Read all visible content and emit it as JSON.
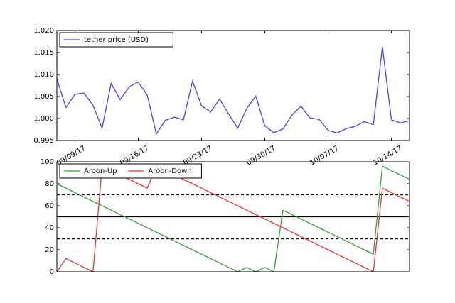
{
  "chart_data": [
    {
      "type": "line",
      "x": [
        "2017-09-07",
        "2017-09-08",
        "2017-09-09",
        "2017-09-10",
        "2017-09-11",
        "2017-09-12",
        "2017-09-13",
        "2017-09-14",
        "2017-09-15",
        "2017-09-16",
        "2017-09-17",
        "2017-09-18",
        "2017-09-19",
        "2017-09-20",
        "2017-09-21",
        "2017-09-22",
        "2017-09-23",
        "2017-09-24",
        "2017-09-25",
        "2017-09-26",
        "2017-09-27",
        "2017-09-28",
        "2017-09-29",
        "2017-09-30",
        "2017-10-01",
        "2017-10-02",
        "2017-10-03",
        "2017-10-04",
        "2017-10-05",
        "2017-10-06",
        "2017-10-07",
        "2017-10-08",
        "2017-10-09",
        "2017-10-10",
        "2017-10-11",
        "2017-10-12",
        "2017-10-13",
        "2017-10-14",
        "2017-10-15",
        "2017-10-16"
      ],
      "series": [
        {
          "name": "tether price (USD)",
          "color": "#4040ff",
          "values": [
            1.009,
            1.0025,
            1.0055,
            1.0058,
            1.003,
            0.9978,
            1.008,
            1.0043,
            1.0072,
            1.0083,
            1.0053,
            0.9965,
            0.9996,
            1.0003,
            0.9997,
            1.0085,
            1.0029,
            1.0015,
            1.0044,
            1.001,
            0.9978,
            1.0023,
            1.0051,
            0.9983,
            0.9968,
            0.9976,
            1.0008,
            1.0028,
            1.0001,
            0.9998,
            0.9973,
            0.9967,
            0.9977,
            0.9982,
            0.9993,
            0.9986,
            1.0163,
            0.9997,
            0.999,
            0.9995
          ]
        }
      ],
      "xlim": [
        "2017-09-07",
        "2017-10-16"
      ],
      "xticks": [
        {
          "value": "2017-09-09",
          "label": "09/09/17"
        },
        {
          "value": "2017-09-16",
          "label": "09/16/17"
        },
        {
          "value": "2017-09-23",
          "label": "09/23/17"
        },
        {
          "value": "2017-09-30",
          "label": "09/30/17"
        },
        {
          "value": "2017-10-07",
          "label": "10/07/17"
        },
        {
          "value": "2017-10-14",
          "label": "10/14/17"
        }
      ],
      "ylim": [
        0.995,
        1.02
      ],
      "yticks": [
        {
          "value": 0.995,
          "label": "0.995"
        },
        {
          "value": 1.0,
          "label": "1.000"
        },
        {
          "value": 1.005,
          "label": "1.005"
        },
        {
          "value": 1.01,
          "label": "1.010"
        },
        {
          "value": 1.015,
          "label": "1.015"
        },
        {
          "value": 1.02,
          "label": "1.020"
        }
      ],
      "legend": "upper left"
    },
    {
      "type": "line",
      "x": [
        "2017-09-07",
        "2017-09-08",
        "2017-09-09",
        "2017-09-10",
        "2017-09-11",
        "2017-09-12",
        "2017-09-13",
        "2017-09-14",
        "2017-09-15",
        "2017-09-16",
        "2017-09-17",
        "2017-09-18",
        "2017-09-19",
        "2017-09-20",
        "2017-09-21",
        "2017-09-22",
        "2017-09-23",
        "2017-09-24",
        "2017-09-25",
        "2017-09-26",
        "2017-09-27",
        "2017-09-28",
        "2017-09-29",
        "2017-09-30",
        "2017-10-01",
        "2017-10-02",
        "2017-10-03",
        "2017-10-04",
        "2017-10-05",
        "2017-10-06",
        "2017-10-07",
        "2017-10-08",
        "2017-10-09",
        "2017-10-10",
        "2017-10-11",
        "2017-10-12",
        "2017-10-13",
        "2017-10-14",
        "2017-10-15",
        "2017-10-16"
      ],
      "series": [
        {
          "name": "Aroon-Up",
          "color": "#33a033",
          "values": [
            80,
            76,
            72,
            68,
            64,
            60,
            56,
            52,
            48,
            44,
            40,
            36,
            32,
            28,
            24,
            20,
            16,
            12,
            8,
            4,
            0,
            4,
            0,
            4,
            0,
            56,
            52,
            48,
            44,
            40,
            36,
            32,
            28,
            24,
            20,
            16,
            96,
            92,
            88,
            84
          ]
        },
        {
          "name": "Aroon-Down",
          "color": "#f03030",
          "values": [
            0,
            12,
            8,
            4,
            0,
            96,
            92,
            88,
            84,
            80,
            76,
            96,
            92,
            88,
            84,
            80,
            76,
            72,
            68,
            64,
            60,
            56,
            52,
            48,
            44,
            40,
            36,
            32,
            28,
            24,
            20,
            16,
            12,
            8,
            4,
            0,
            76,
            72,
            68,
            64
          ]
        }
      ],
      "xlim": [
        "2017-09-07",
        "2017-10-16"
      ],
      "ylim": [
        0,
        100
      ],
      "yticks": [
        0,
        20,
        40,
        60,
        80,
        100
      ],
      "reference_lines": [
        {
          "value": 70,
          "style": "dashed"
        },
        {
          "value": 50,
          "style": "solid"
        },
        {
          "value": 30,
          "style": "dashed"
        }
      ],
      "legend": "upper left"
    }
  ]
}
